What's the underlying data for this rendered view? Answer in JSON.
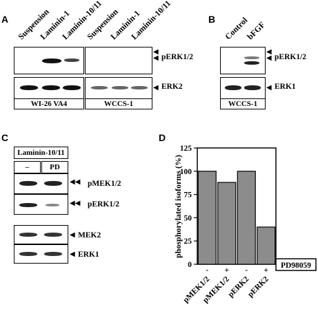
{
  "panels": {
    "A": {
      "label": "A",
      "lanes_left": [
        "Suspension",
        "Laminin-1",
        "Laminin-10/11"
      ],
      "lanes_right": [
        "Suspension",
        "Laminin-1",
        "Laminin-10/11"
      ],
      "row1_label": "pERK1/2",
      "row2_label": "ERK2",
      "cell_left": "WI-26 VA4",
      "cell_right": "WCCS-1"
    },
    "B": {
      "label": "B",
      "lanes": [
        "Control",
        "bFGF"
      ],
      "row1_label": "pERK1/2",
      "row2_label": "ERK1",
      "cell": "WCCS-1"
    },
    "C": {
      "label": "C",
      "header": "Laminin-10/11",
      "cond_1": "–",
      "cond_2": "PD",
      "row_labels": [
        "pMEK1/2",
        "pERK1/2",
        "MEK2",
        "ERK1"
      ]
    },
    "D": {
      "label": "D",
      "treatment_label": "PD98059"
    }
  },
  "chart_data": {
    "type": "bar",
    "ylabel": "phosphorylated isoforms (%)",
    "xlabel": "",
    "ylim": [
      0,
      125
    ],
    "yticks": [
      0,
      25,
      50,
      75,
      100,
      125
    ],
    "categories": [
      "pMEK1/2",
      "pMEK1/2",
      "pERK2",
      "pERK2"
    ],
    "treatment": [
      "-",
      "+",
      "-",
      "+"
    ],
    "values": [
      100,
      88,
      100,
      40
    ],
    "bar_color": "#8c8c8c"
  }
}
